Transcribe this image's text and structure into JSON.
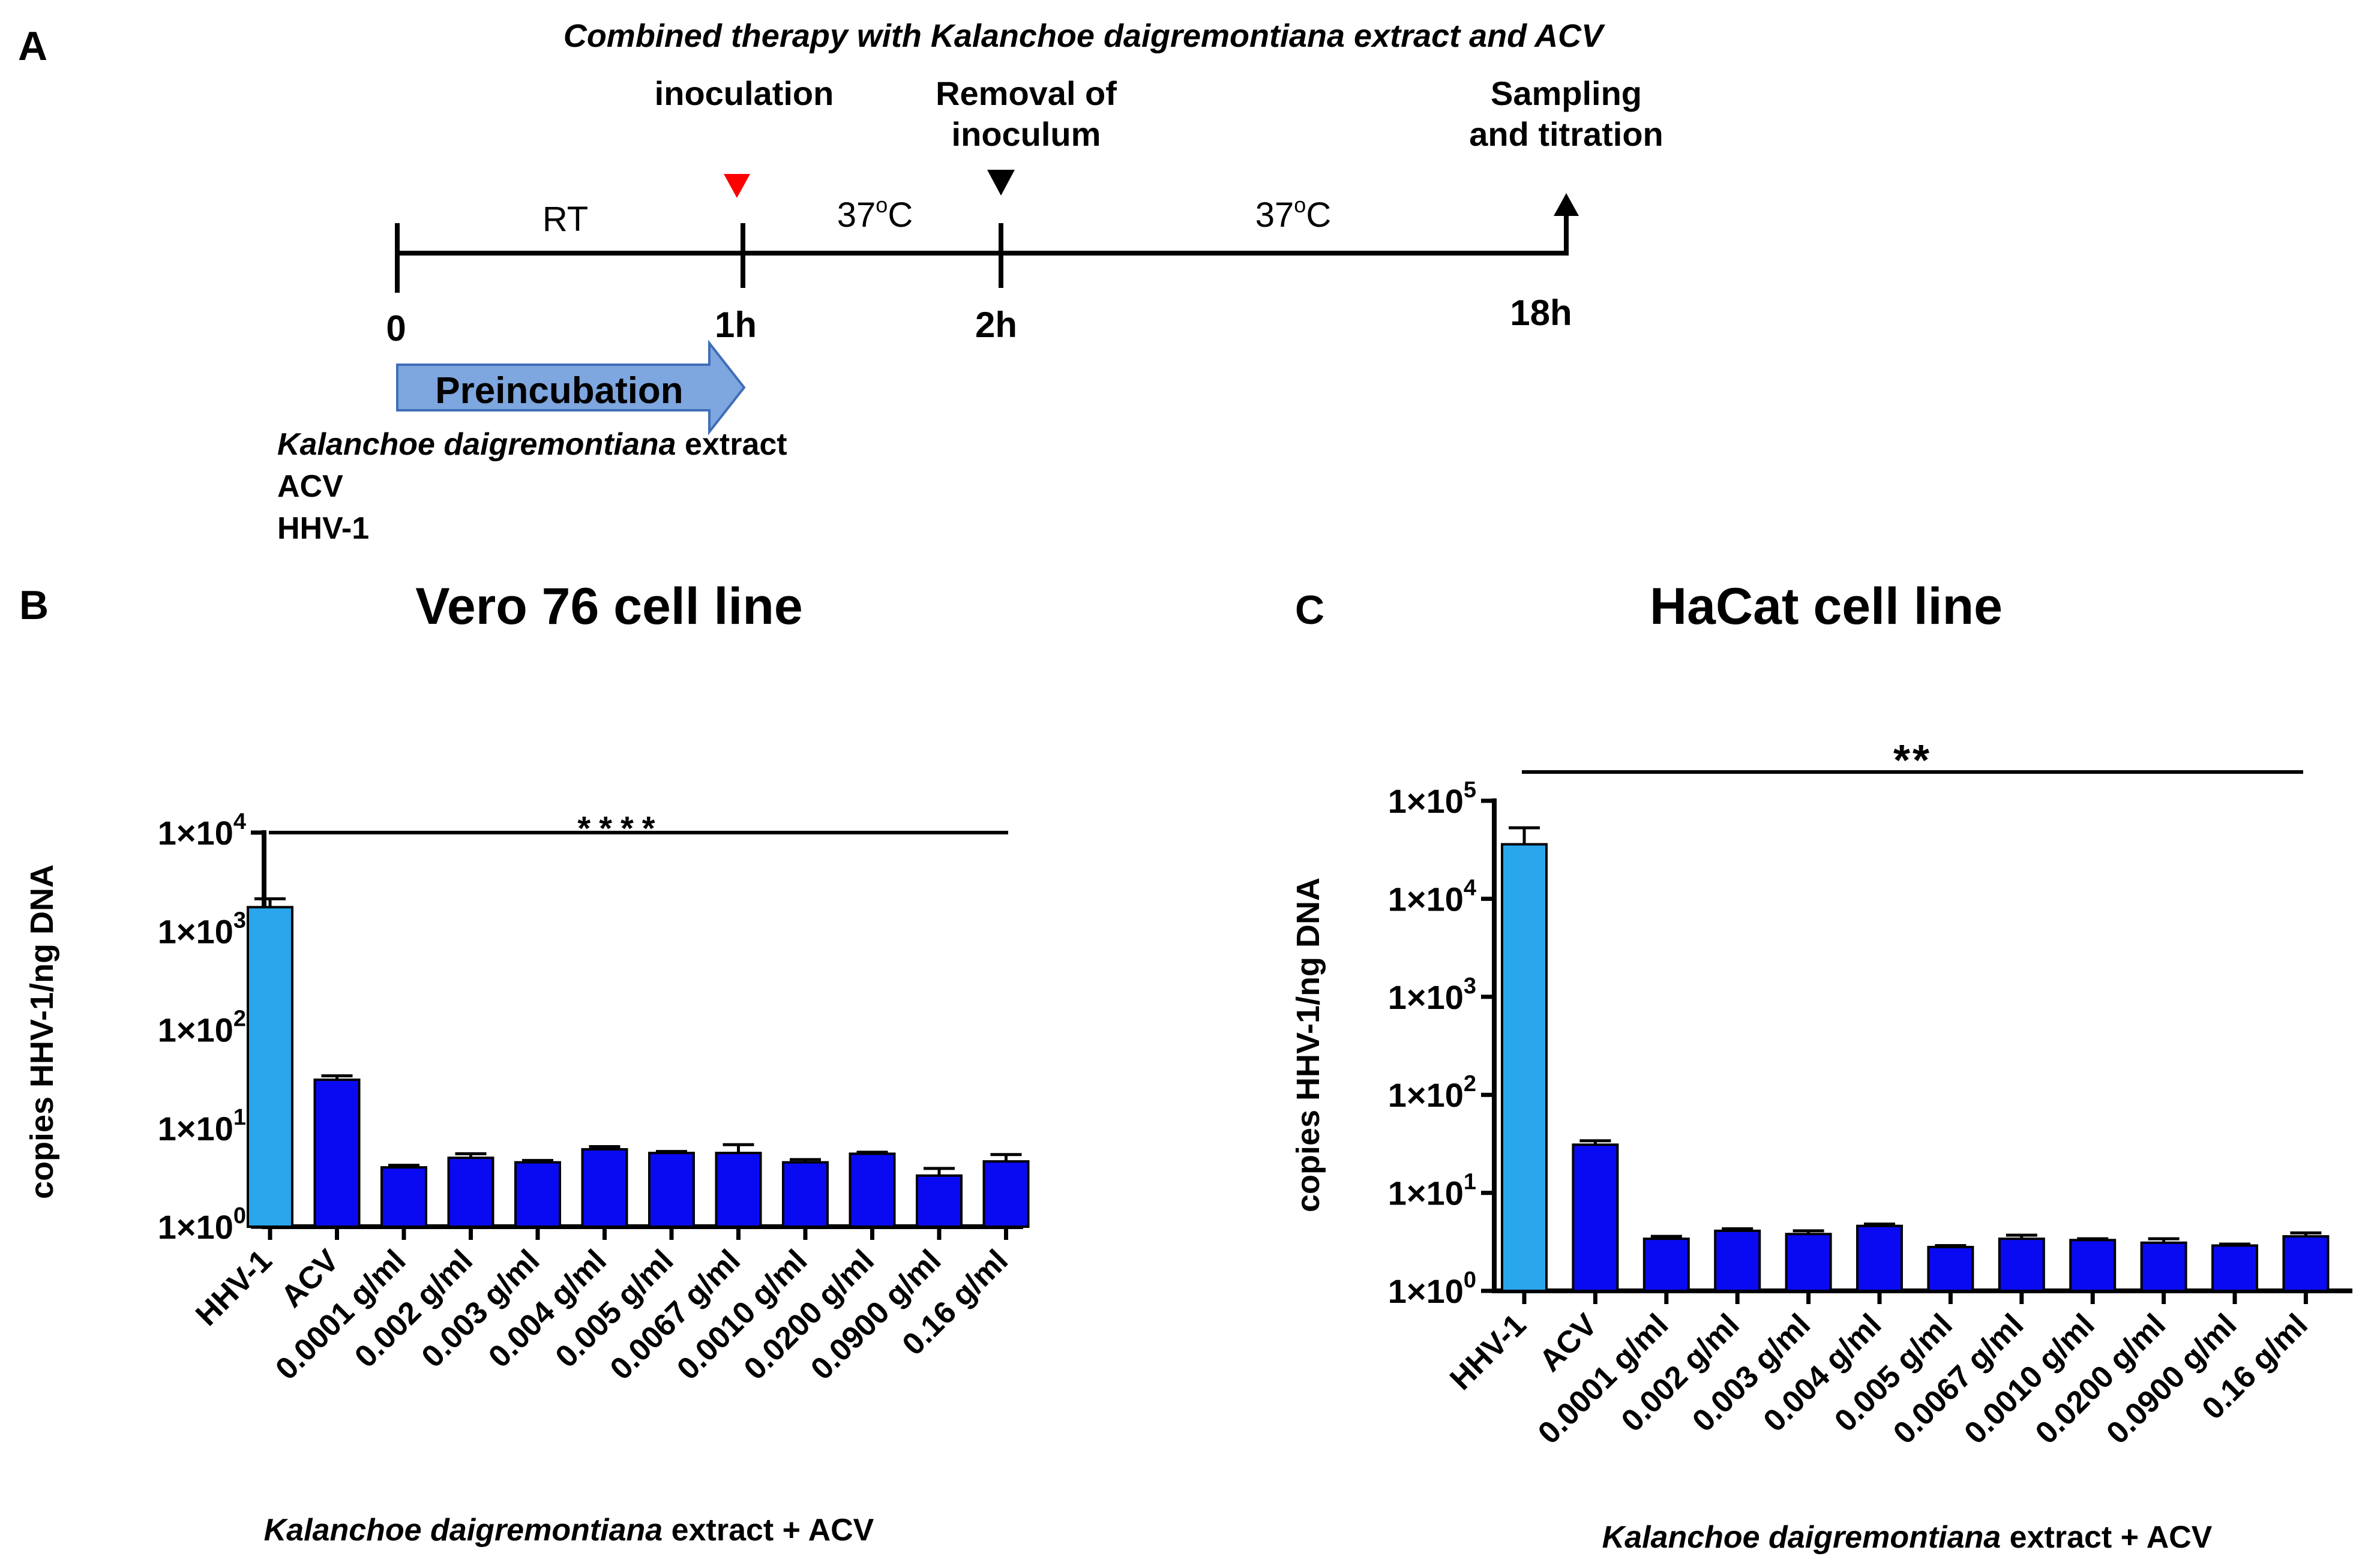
{
  "colors": {
    "hhv_bar": "#29a6ec",
    "treatment_bar": "#0a0af2",
    "axis": "#000000",
    "arrow_fill": "#7ea6df",
    "arrow_stroke": "#3f6db8",
    "inoculation_marker": "#ff0000",
    "removal_marker": "#000000"
  },
  "panel_a": {
    "panel_label": "A",
    "title": "Combined therapy with Kalanchoe daigremontiana extract and ACV",
    "inoculation_label": "inoculation",
    "removal_label_line1": "Removal of",
    "removal_label_line2": "inoculum",
    "sampling_label_line1": "Sampling",
    "sampling_label_line2": "and titration",
    "segment_rt": "RT",
    "segment_37_first": "37",
    "segment_37_second": "37",
    "degree_symbol": "o",
    "celsius": "C",
    "tick_0": "0",
    "tick_1h": "1h",
    "tick_2h": "2h",
    "tick_18h": "18h",
    "preincubation_label": "Preincubation",
    "reagent_extract_italic": "Kalanchoe daigremontiana",
    "reagent_extract_rest": " extract",
    "reagent_acv": "ACV",
    "reagent_hhv": "HHV-1"
  },
  "chart_data": [
    {
      "panel_label": "B",
      "type": "bar",
      "title": "Vero 76 cell line",
      "ylabel": "copies HHV-1/ng DNA",
      "xlabel_italic": "Kalanchoe daigremontiana",
      "xlabel_rest": " extract + ACV",
      "yscale": "log",
      "ylim": [
        1,
        10000
      ],
      "yticks": [
        {
          "mantissa": "1×10",
          "exp": "0"
        },
        {
          "mantissa": "1×10",
          "exp": "1"
        },
        {
          "mantissa": "1×10",
          "exp": "2"
        },
        {
          "mantissa": "1×10",
          "exp": "3"
        },
        {
          "mantissa": "1×10",
          "exp": "4"
        }
      ],
      "significance": "****",
      "categories": [
        "HHV-1",
        "ACV",
        "0.0001 g/ml",
        "0.002 g/ml",
        "0.003 g/ml",
        "0.004 g/ml",
        "0.005 g/ml",
        "0.0067 g/ml",
        "0.0010 g/ml",
        "0.0200 g/ml",
        "0.0900 g/ml",
        "0.16 g/ml"
      ],
      "values": [
        1750,
        31,
        4.0,
        5.0,
        4.5,
        6.1,
        5.6,
        5.6,
        4.5,
        5.5,
        3.3,
        4.6
      ],
      "errors": [
        380,
        3,
        0.2,
        0.5,
        0.2,
        0.4,
        0.2,
        1.2,
        0.3,
        0.2,
        0.6,
        0.8
      ]
    },
    {
      "panel_label": "C",
      "type": "bar",
      "title": "HaCat cell line",
      "ylabel": "copies HHV-1/ng DNA",
      "xlabel_italic": "Kalanchoe daigremontiana",
      "xlabel_rest": " extract + ACV",
      "yscale": "log",
      "ylim": [
        1,
        100000
      ],
      "yticks": [
        {
          "mantissa": "1×10",
          "exp": "0"
        },
        {
          "mantissa": "1×10",
          "exp": "1"
        },
        {
          "mantissa": "1×10",
          "exp": "2"
        },
        {
          "mantissa": "1×10",
          "exp": "3"
        },
        {
          "mantissa": "1×10",
          "exp": "4"
        },
        {
          "mantissa": "1×10",
          "exp": "5"
        }
      ],
      "significance": "**",
      "categories": [
        "HHV-1",
        "ACV",
        "0.0001 g/ml",
        "0.002 g/ml",
        "0.003 g/ml",
        "0.004 g/ml",
        "0.005 g/ml",
        "0.0067 g/ml",
        "0.0010 g/ml",
        "0.0200 g/ml",
        "0.0900 g/ml",
        "0.16 g/ml"
      ],
      "values": [
        36000,
        31,
        3.4,
        4.1,
        3.8,
        4.6,
        2.8,
        3.4,
        3.3,
        3.1,
        2.9,
        3.6
      ],
      "errors": [
        17000,
        3,
        0.2,
        0.2,
        0.3,
        0.2,
        0.1,
        0.3,
        0.1,
        0.3,
        0.1,
        0.3
      ]
    }
  ]
}
